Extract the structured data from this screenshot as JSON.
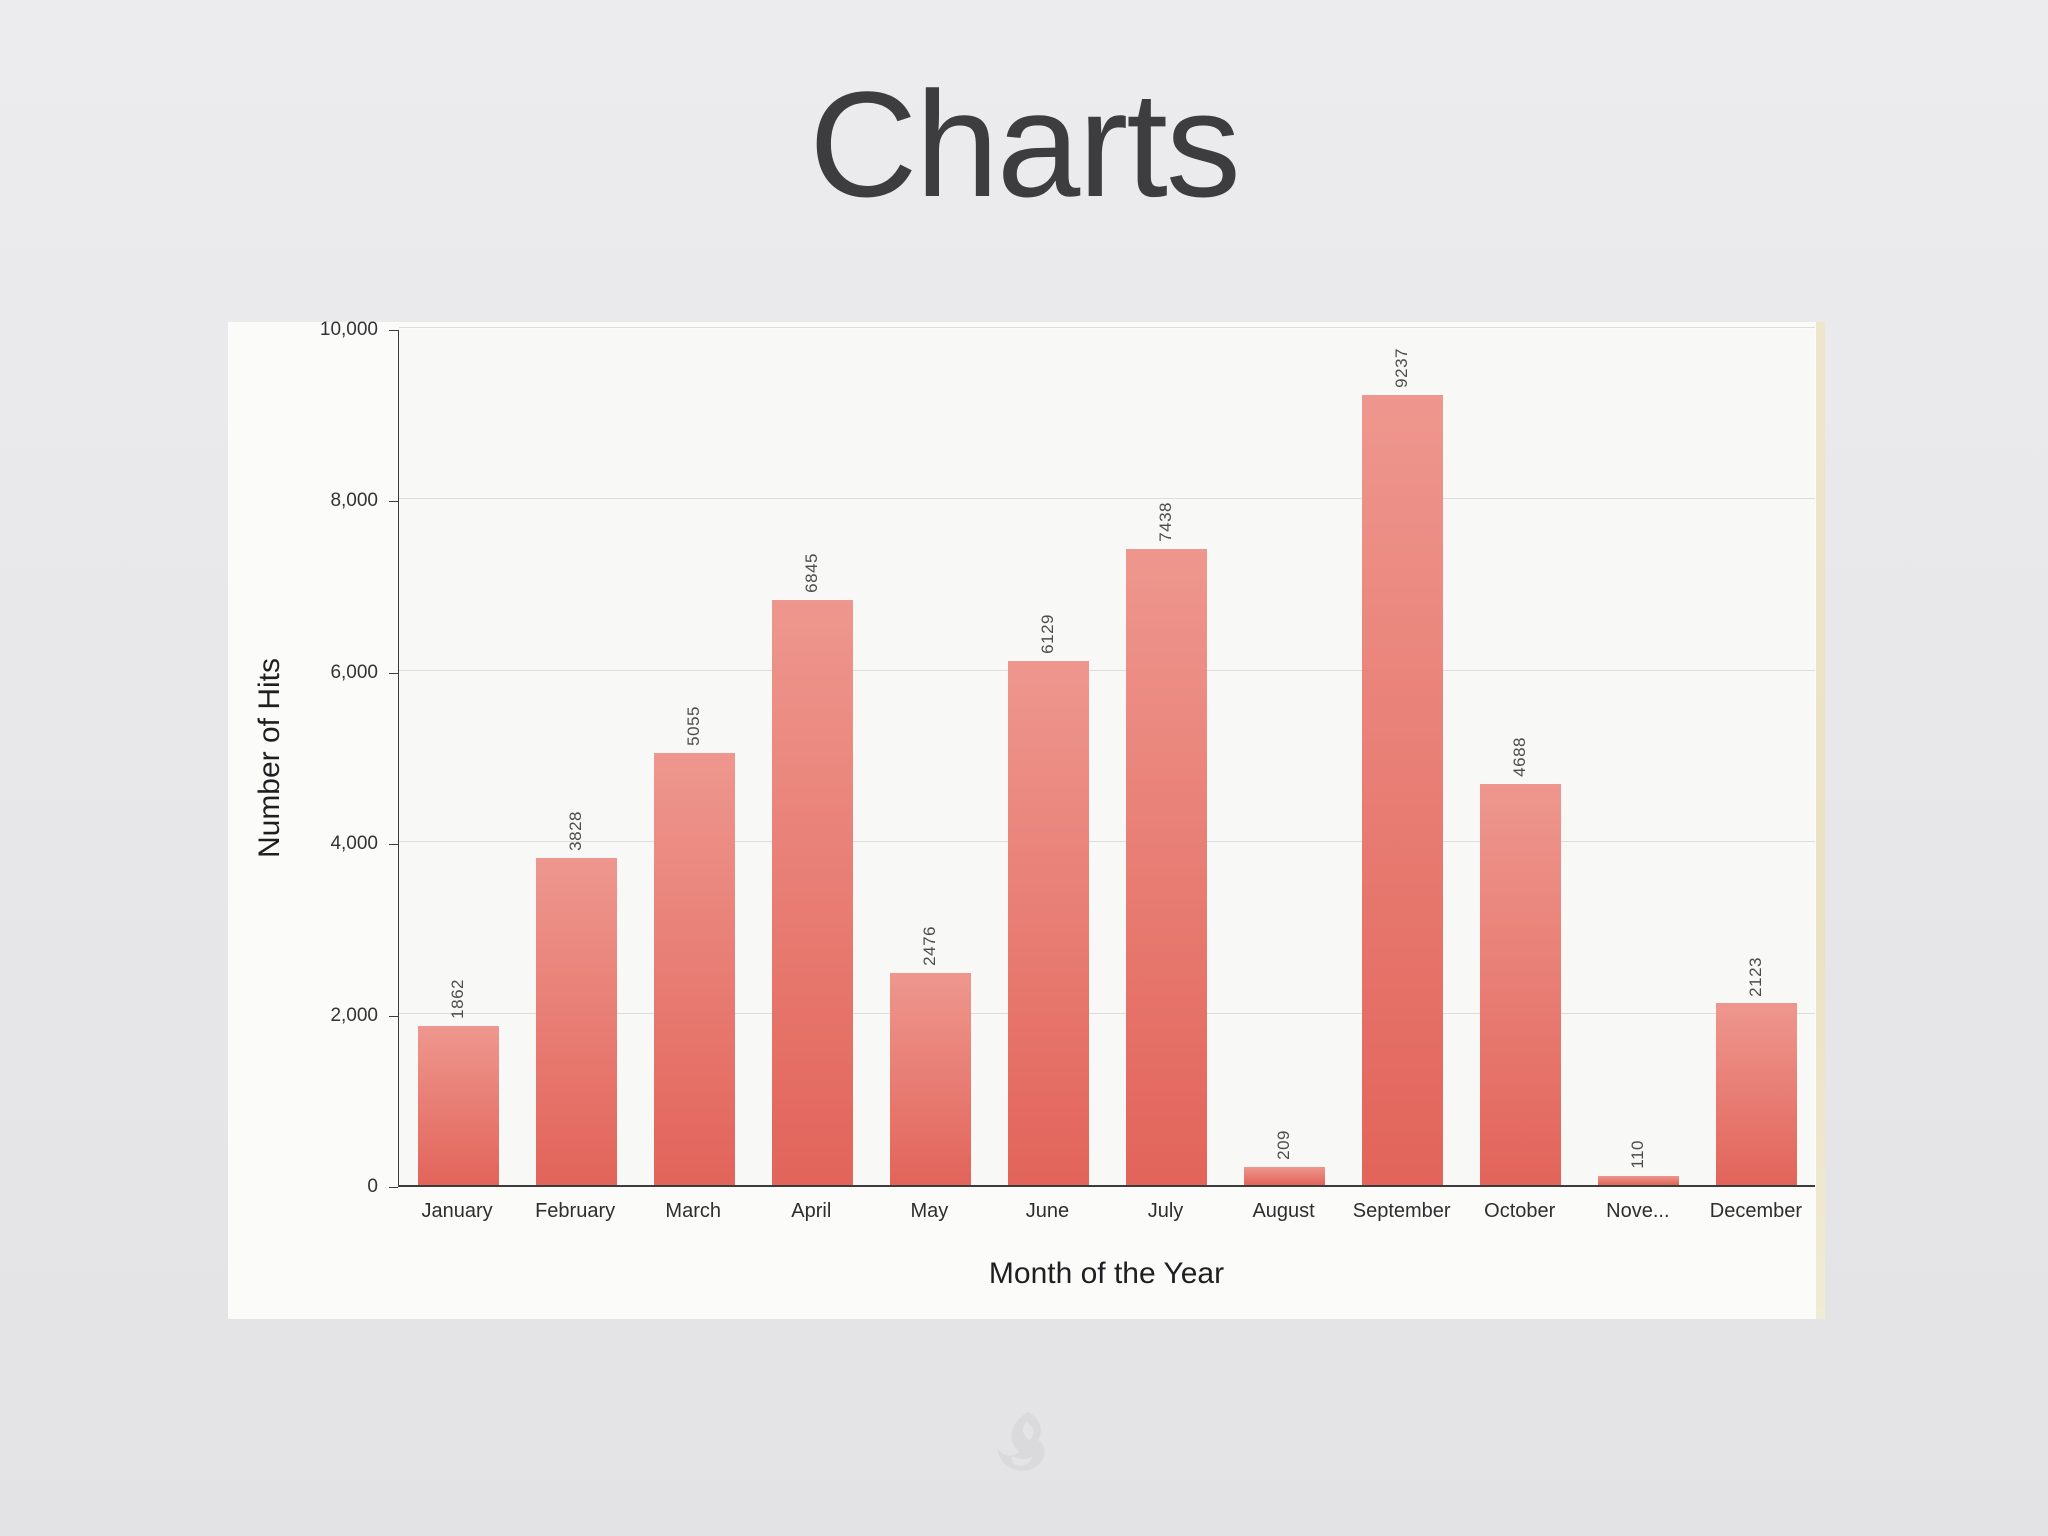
{
  "slide": {
    "title": "Charts",
    "background_color": "#e9e9ea"
  },
  "chart_data": {
    "type": "bar",
    "title": "",
    "categories": [
      "January",
      "February",
      "March",
      "April",
      "May",
      "June",
      "July",
      "August",
      "September",
      "October",
      "Nove...",
      "December"
    ],
    "values": [
      1862,
      3828,
      5055,
      6845,
      2476,
      6129,
      7438,
      209,
      9237,
      4688,
      110,
      2123
    ],
    "value_labels": [
      "1862",
      "3828",
      "5055",
      "6845",
      "2476",
      "6129",
      "7438",
      "209",
      "9237",
      "4688",
      "110",
      "2123"
    ],
    "xlabel": "Month of the Year",
    "ylabel": "Number of Hits",
    "ylim": [
      0,
      10000
    ],
    "yticks": [
      {
        "value": 0,
        "label": "0"
      },
      {
        "value": 2000,
        "label": "2,000"
      },
      {
        "value": 4000,
        "label": "4,000"
      },
      {
        "value": 6000,
        "label": "6,000"
      },
      {
        "value": 8000,
        "label": "8,000"
      },
      {
        "value": 10000,
        "label": "10,000"
      }
    ],
    "grid": true,
    "legend_position": "none",
    "bar_color_top": "#ee978e",
    "bar_color_bottom": "#e2645a"
  }
}
